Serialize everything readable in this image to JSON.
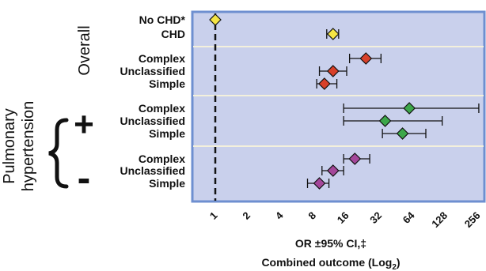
{
  "chart_data": {
    "type": "forest",
    "x_scale": "log2",
    "xlim": [
      0.8,
      320
    ],
    "x_ticks": [
      {
        "value": 1,
        "label": "1"
      },
      {
        "value": 2,
        "label": "2"
      },
      {
        "value": 4,
        "label": "4"
      },
      {
        "value": 8,
        "label": "8"
      },
      {
        "value": 16,
        "label": "16"
      },
      {
        "value": 32,
        "label": "32"
      },
      {
        "value": 64,
        "label": "64"
      },
      {
        "value": 128,
        "label": "128"
      },
      {
        "value": 256,
        "label": "256"
      }
    ],
    "reference_value": 1,
    "xlabel_line1": "OR ±95% CI,‡",
    "xlabel_line2": "Combined outcome (Log",
    "xlabel_sub": "2",
    "xlabel_close": ")",
    "groups": {
      "overall": "Overall",
      "pulmonary_line1": "Pulmonary",
      "pulmonary_line2": "hypertension",
      "ph_positive": "+",
      "ph_negative": "-"
    },
    "colors": {
      "plot_bg": "#c9d0ec",
      "frame": "#6e8fd0",
      "separator": "#f3f0dc",
      "yellow": "#f5e545",
      "red": "#d8402a",
      "green": "#3da74a",
      "purple": "#a4479a"
    },
    "rows": [
      {
        "label": "No CHD*",
        "or": 1,
        "lo": null,
        "hi": null,
        "color": "yellow"
      },
      {
        "label": "CHD",
        "or": 12,
        "lo": 10.5,
        "hi": 13.5,
        "color": "yellow"
      },
      {
        "label": "Complex",
        "or": 24,
        "lo": 17,
        "hi": 33,
        "color": "red"
      },
      {
        "label": "Unclassified",
        "or": 12,
        "lo": 9,
        "hi": 16,
        "color": "red"
      },
      {
        "label": "Simple",
        "or": 10,
        "lo": 8.5,
        "hi": 13,
        "color": "red"
      },
      {
        "label": "Complex",
        "or": 60,
        "lo": 15,
        "hi": 260,
        "color": "green"
      },
      {
        "label": "Unclassified",
        "or": 36,
        "lo": 15,
        "hi": 120,
        "color": "green"
      },
      {
        "label": "Simple",
        "or": 52,
        "lo": 34,
        "hi": 85,
        "color": "green"
      },
      {
        "label": "Complex",
        "or": 19,
        "lo": 15,
        "hi": 26,
        "color": "purple"
      },
      {
        "label": "Unclassified",
        "or": 12,
        "lo": 9.5,
        "hi": 15,
        "color": "purple"
      },
      {
        "label": "Simple",
        "or": 9,
        "lo": 7,
        "hi": 11,
        "color": "purple"
      }
    ]
  }
}
